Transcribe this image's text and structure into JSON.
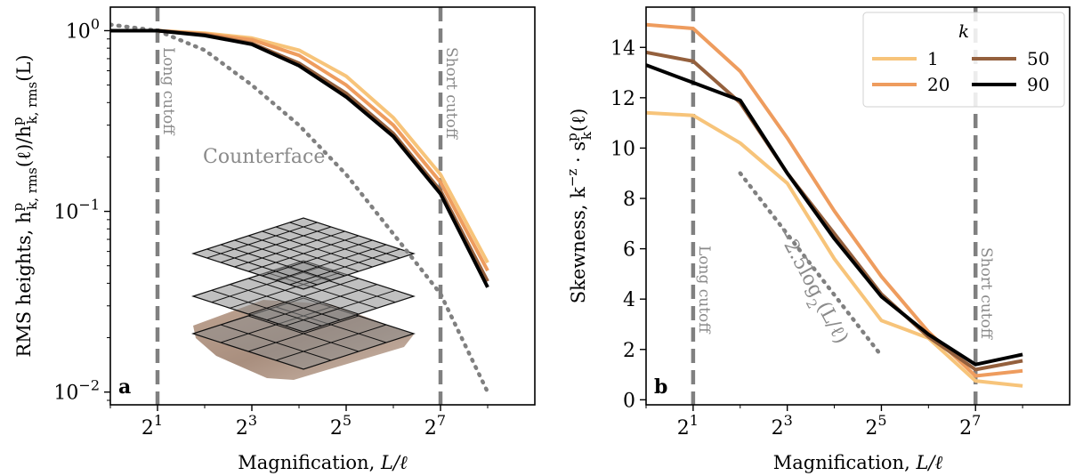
{
  "chart_data": [
    {
      "type": "line",
      "panel_label": "a",
      "xlabel": "Magnification, L/ℓ",
      "ylabel": "RMS heights, h^p_{k,rms}(ℓ)/h^p_{k,rms}(L)",
      "ylabel_parts": {
        "pre": "RMS heights, h",
        "sup1": "p",
        "sub1": "k, rms",
        "mid": "(ℓ)/h",
        "sup2": "p",
        "sub2": "k, rms",
        "post": "(L)"
      },
      "xscale": "log2",
      "yscale": "log10",
      "xlim": [
        1,
        512
      ],
      "ylim": [
        0.0085,
        1.35
      ],
      "xticks": [
        {
          "value": 2,
          "base": "2",
          "exp": "1"
        },
        {
          "value": 8,
          "base": "2",
          "exp": "3"
        },
        {
          "value": 32,
          "base": "2",
          "exp": "5"
        },
        {
          "value": 128,
          "base": "2",
          "exp": "7"
        }
      ],
      "yticks": [
        {
          "value": 1,
          "base": "10",
          "exp": "0"
        },
        {
          "value": 0.1,
          "base": "10",
          "exp": "−1"
        },
        {
          "value": 0.01,
          "base": "10",
          "exp": "−2"
        }
      ],
      "x": [
        1,
        2,
        4,
        8,
        16,
        32,
        64,
        128,
        256
      ],
      "series": [
        {
          "key": "k1",
          "color": "#f7c47a",
          "values": [
            1.0,
            1.0,
            0.97,
            0.91,
            0.78,
            0.56,
            0.33,
            0.16,
            0.052
          ]
        },
        {
          "key": "k20",
          "color": "#ee9c5e",
          "values": [
            1.0,
            1.0,
            0.96,
            0.89,
            0.73,
            0.5,
            0.3,
            0.145,
            0.047
          ]
        },
        {
          "key": "k50",
          "color": "#94603d",
          "values": [
            1.0,
            1.0,
            0.95,
            0.85,
            0.66,
            0.45,
            0.27,
            0.13,
            0.041
          ]
        },
        {
          "key": "k90",
          "color": "#000000",
          "values": [
            1.0,
            1.0,
            0.94,
            0.84,
            0.64,
            0.43,
            0.26,
            0.125,
            0.038
          ]
        }
      ],
      "reference": {
        "label": "Counterface",
        "color": "#808080",
        "x": [
          1,
          2,
          4,
          8,
          16,
          32,
          64,
          128,
          256
        ],
        "values": [
          1.08,
          1.0,
          0.78,
          0.5,
          0.3,
          0.16,
          0.075,
          0.035,
          0.01
        ]
      },
      "cutoffs": [
        {
          "x": 2,
          "label": "Long cutoff"
        },
        {
          "x": 128,
          "label": "Short cutoff"
        }
      ]
    },
    {
      "type": "line",
      "panel_label": "b",
      "xlabel": "Magnification, L/ℓ",
      "ylabel": "Skewness, k^−z · s^p_k(ℓ)",
      "ylabel_parts": {
        "pre": "Skewness, k",
        "sup1": "−z",
        "mid": " · s",
        "sup2": "p",
        "sub2": "k",
        "post": "(ℓ)"
      },
      "xscale": "log2",
      "yscale": "linear",
      "xlim": [
        1,
        512
      ],
      "ylim": [
        -0.2,
        15.6
      ],
      "xticks": [
        {
          "value": 2,
          "base": "2",
          "exp": "1"
        },
        {
          "value": 8,
          "base": "2",
          "exp": "3"
        },
        {
          "value": 32,
          "base": "2",
          "exp": "5"
        },
        {
          "value": 128,
          "base": "2",
          "exp": "7"
        }
      ],
      "yticks": [
        {
          "value": 0,
          "label": "0"
        },
        {
          "value": 2,
          "label": "2"
        },
        {
          "value": 4,
          "label": "4"
        },
        {
          "value": 6,
          "label": "6"
        },
        {
          "value": 8,
          "label": "8"
        },
        {
          "value": 10,
          "label": "10"
        },
        {
          "value": 12,
          "label": "12"
        },
        {
          "value": 14,
          "label": "14"
        }
      ],
      "x": [
        1,
        2,
        4,
        8,
        16,
        32,
        64,
        128,
        256
      ],
      "series": [
        {
          "key": "k1",
          "name": "1",
          "color": "#f7c47a",
          "values": [
            11.4,
            11.3,
            10.2,
            8.6,
            5.6,
            3.15,
            2.45,
            0.75,
            0.55
          ]
        },
        {
          "key": "k20",
          "name": "20",
          "color": "#ee9c5e",
          "values": [
            14.9,
            14.75,
            13.05,
            10.4,
            7.5,
            4.9,
            2.7,
            0.95,
            1.15
          ]
        },
        {
          "key": "k50",
          "name": "50",
          "color": "#94603d",
          "values": [
            13.8,
            13.45,
            11.8,
            9.0,
            6.6,
            4.2,
            2.5,
            1.2,
            1.55
          ]
        },
        {
          "key": "k90",
          "name": "90",
          "color": "#000000",
          "values": [
            13.3,
            12.6,
            11.9,
            9.0,
            6.4,
            4.1,
            2.6,
            1.4,
            1.8
          ]
        }
      ],
      "reference": {
        "label": "−2.5log₂(L/ℓ)",
        "label_parts": {
          "pre": "−2.5log",
          "sub": "2",
          "post": "(L/ℓ)"
        },
        "color": "#808080",
        "x": [
          4,
          32
        ],
        "values": [
          9.0,
          1.75
        ]
      },
      "cutoffs": [
        {
          "x": 2,
          "label": "Long cutoff"
        },
        {
          "x": 128,
          "label": "Short cutoff"
        }
      ],
      "legend": {
        "title": "k",
        "placement": "top-right",
        "columns": 2
      }
    }
  ]
}
